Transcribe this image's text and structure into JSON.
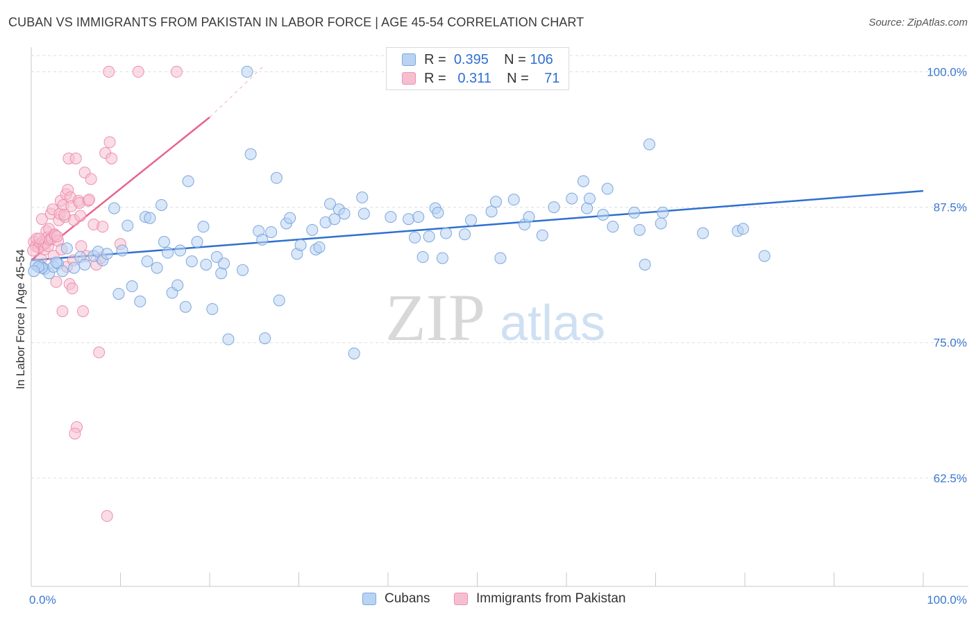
{
  "title": "CUBAN VS IMMIGRANTS FROM PAKISTAN IN LABOR FORCE | AGE 45-54 CORRELATION CHART",
  "source": "Source: ZipAtlas.com",
  "watermark": {
    "zip": "ZIP",
    "atlas": "atlas"
  },
  "legend": {
    "rows": [
      {
        "r_label": "R =",
        "r_value": "0.395",
        "n_label": "N =",
        "n_value": "106"
      },
      {
        "r_label": "R =",
        "r_value": "0.311",
        "n_label": "N =",
        "n_value": "71"
      }
    ]
  },
  "colors": {
    "cubans_fill": "#b9d3f3",
    "cubans_stroke": "#7aa7e0",
    "cubans_line": "#2f6fcf",
    "pakistan_fill": "#f6bfd0",
    "pakistan_stroke": "#ee8fb0",
    "pakistan_line": "#e8628e",
    "tick_label": "#3a78d0",
    "grid": "#dddddd"
  },
  "chart_data": {
    "type": "scatter",
    "title": "CUBAN VS IMMIGRANTS FROM PAKISTAN IN LABOR FORCE | AGE 45-54 CORRELATION CHART",
    "xlabel": "",
    "ylabel": "In Labor Force | Age 45-54",
    "xlim": [
      0,
      100
    ],
    "ylim": [
      52.5,
      101.5
    ],
    "x_tick_labels": [
      "0.0%",
      "100.0%"
    ],
    "y_ticks": [
      62.5,
      75.0,
      87.5,
      100.0
    ],
    "y_tick_labels": [
      "62.5%",
      "75.0%",
      "87.5%",
      "100.0%"
    ],
    "grid": "horizontal dashed",
    "legend_position": "bottom-center",
    "series": [
      {
        "name": "Cubans",
        "r": 0.395,
        "n": 106,
        "trend": {
          "x": [
            0,
            100
          ],
          "y": [
            82.6,
            89.0
          ]
        },
        "points": [
          [
            1.0,
            82.1
          ],
          [
            1.5,
            81.8
          ],
          [
            2.0,
            81.4
          ],
          [
            2.5,
            82.0
          ],
          [
            3.0,
            82.3
          ],
          [
            3.5,
            81.6
          ],
          [
            4.0,
            83.7
          ],
          [
            4.8,
            81.9
          ],
          [
            5.5,
            82.9
          ],
          [
            6.0,
            82.2
          ],
          [
            7.0,
            83.0
          ],
          [
            7.5,
            83.4
          ],
          [
            8.0,
            82.6
          ],
          [
            8.5,
            83.2
          ],
          [
            9.3,
            87.4
          ],
          [
            9.8,
            79.5
          ],
          [
            10.2,
            83.5
          ],
          [
            10.8,
            85.8
          ],
          [
            11.3,
            80.2
          ],
          [
            12.2,
            78.8
          ],
          [
            12.8,
            86.6
          ],
          [
            13.0,
            82.5
          ],
          [
            13.3,
            86.5
          ],
          [
            14.1,
            81.9
          ],
          [
            14.6,
            87.7
          ],
          [
            14.9,
            84.3
          ],
          [
            15.3,
            83.3
          ],
          [
            15.8,
            79.6
          ],
          [
            16.4,
            80.3
          ],
          [
            16.7,
            83.5
          ],
          [
            17.3,
            78.3
          ],
          [
            17.6,
            89.9
          ],
          [
            18.0,
            82.5
          ],
          [
            18.6,
            84.3
          ],
          [
            19.3,
            85.7
          ],
          [
            19.6,
            82.2
          ],
          [
            20.3,
            78.1
          ],
          [
            20.8,
            82.9
          ],
          [
            21.3,
            81.4
          ],
          [
            21.6,
            82.3
          ],
          [
            22.1,
            75.3
          ],
          [
            23.7,
            81.7
          ],
          [
            24.2,
            100.0
          ],
          [
            24.6,
            92.4
          ],
          [
            25.5,
            85.3
          ],
          [
            25.9,
            84.5
          ],
          [
            26.2,
            75.4
          ],
          [
            26.9,
            85.2
          ],
          [
            27.5,
            90.2
          ],
          [
            27.8,
            78.9
          ],
          [
            28.6,
            86.0
          ],
          [
            29.0,
            86.5
          ],
          [
            29.8,
            83.2
          ],
          [
            30.2,
            84.0
          ],
          [
            31.5,
            85.4
          ],
          [
            31.9,
            83.6
          ],
          [
            32.3,
            83.8
          ],
          [
            33.0,
            86.1
          ],
          [
            33.5,
            87.8
          ],
          [
            34.0,
            86.4
          ],
          [
            34.5,
            87.3
          ],
          [
            35.1,
            86.9
          ],
          [
            36.2,
            74.0
          ],
          [
            37.1,
            88.4
          ],
          [
            37.3,
            86.9
          ],
          [
            40.3,
            86.6
          ],
          [
            42.3,
            86.4
          ],
          [
            43.0,
            84.7
          ],
          [
            43.4,
            86.6
          ],
          [
            43.9,
            82.9
          ],
          [
            44.6,
            84.8
          ],
          [
            45.3,
            87.4
          ],
          [
            45.6,
            87.0
          ],
          [
            46.1,
            82.8
          ],
          [
            46.5,
            85.1
          ],
          [
            48.6,
            85.0
          ],
          [
            49.3,
            86.3
          ],
          [
            51.6,
            87.1
          ],
          [
            52.1,
            88.0
          ],
          [
            52.6,
            82.8
          ],
          [
            54.1,
            88.2
          ],
          [
            55.3,
            85.9
          ],
          [
            55.8,
            86.6
          ],
          [
            57.3,
            84.9
          ],
          [
            58.6,
            87.5
          ],
          [
            60.6,
            88.3
          ],
          [
            61.9,
            89.9
          ],
          [
            62.3,
            87.4
          ],
          [
            62.6,
            88.3
          ],
          [
            64.1,
            86.8
          ],
          [
            64.6,
            89.2
          ],
          [
            65.2,
            85.7
          ],
          [
            67.6,
            87.0
          ],
          [
            68.2,
            85.4
          ],
          [
            68.8,
            82.2
          ],
          [
            69.3,
            93.3
          ],
          [
            70.6,
            86.0
          ],
          [
            70.8,
            87.0
          ],
          [
            75.3,
            85.1
          ],
          [
            79.2,
            85.3
          ],
          [
            79.8,
            85.5
          ],
          [
            82.2,
            83.0
          ],
          [
            0.5,
            82.2
          ],
          [
            1.2,
            81.9
          ],
          [
            0.8,
            82.0
          ],
          [
            0.3,
            81.6
          ],
          [
            2.8,
            82.4
          ]
        ]
      },
      {
        "name": "Immigrants from Pakistan",
        "r": 0.311,
        "n": 71,
        "trend": {
          "x": [
            0,
            20
          ],
          "y": [
            82.6,
            95.8
          ]
        },
        "trend_dashed": {
          "x": [
            20,
            26
          ],
          "y": [
            95.8,
            100.5
          ]
        },
        "points": [
          [
            0.3,
            84.3
          ],
          [
            0.5,
            83.9
          ],
          [
            0.6,
            84.6
          ],
          [
            0.8,
            83.8
          ],
          [
            1.0,
            84.1
          ],
          [
            1.1,
            82.7
          ],
          [
            1.2,
            86.4
          ],
          [
            1.3,
            84.3
          ],
          [
            1.4,
            84.0
          ],
          [
            1.5,
            83.6
          ],
          [
            1.6,
            84.2
          ],
          [
            1.7,
            85.3
          ],
          [
            1.8,
            84.7
          ],
          [
            1.9,
            83.9
          ],
          [
            2.0,
            85.5
          ],
          [
            2.1,
            84.5
          ],
          [
            2.2,
            86.9
          ],
          [
            2.3,
            84.6
          ],
          [
            2.4,
            87.3
          ],
          [
            2.5,
            83.0
          ],
          [
            2.6,
            85.0
          ],
          [
            2.7,
            84.9
          ],
          [
            2.8,
            80.6
          ],
          [
            3.0,
            84.4
          ],
          [
            3.1,
            86.3
          ],
          [
            3.2,
            86.9
          ],
          [
            3.3,
            88.1
          ],
          [
            3.4,
            83.6
          ],
          [
            3.5,
            77.9
          ],
          [
            3.6,
            87.7
          ],
          [
            3.8,
            86.6
          ],
          [
            3.9,
            88.7
          ],
          [
            4.0,
            82.0
          ],
          [
            4.1,
            89.1
          ],
          [
            4.2,
            92.0
          ],
          [
            4.3,
            80.4
          ],
          [
            4.4,
            88.4
          ],
          [
            4.5,
            87.6
          ],
          [
            4.6,
            80.0
          ],
          [
            4.7,
            82.6
          ],
          [
            4.8,
            86.3
          ],
          [
            5.0,
            92.0
          ],
          [
            5.1,
            67.2
          ],
          [
            5.3,
            88.1
          ],
          [
            5.4,
            87.9
          ],
          [
            5.6,
            83.9
          ],
          [
            5.8,
            77.9
          ],
          [
            6.0,
            90.7
          ],
          [
            6.2,
            83.0
          ],
          [
            6.4,
            88.1
          ],
          [
            6.7,
            90.1
          ],
          [
            7.0,
            85.9
          ],
          [
            7.3,
            82.2
          ],
          [
            7.6,
            74.1
          ],
          [
            7.8,
            82.8
          ],
          [
            8.0,
            85.7
          ],
          [
            8.3,
            92.5
          ],
          [
            8.5,
            59.0
          ],
          [
            8.7,
            100.0
          ],
          [
            8.8,
            93.5
          ],
          [
            9.0,
            92.0
          ],
          [
            10.0,
            84.1
          ],
          [
            12.0,
            100.0
          ],
          [
            16.3,
            100.0
          ],
          [
            5.5,
            86.7
          ],
          [
            4.9,
            66.6
          ],
          [
            0.2,
            83.5
          ],
          [
            0.9,
            84.6
          ],
          [
            2.9,
            84.8
          ],
          [
            3.7,
            86.8
          ],
          [
            6.5,
            88.2
          ]
        ]
      }
    ]
  },
  "bottom_legend": {
    "cubans_label": "Cubans",
    "pakistan_label": "Immigrants from Pakistan"
  }
}
